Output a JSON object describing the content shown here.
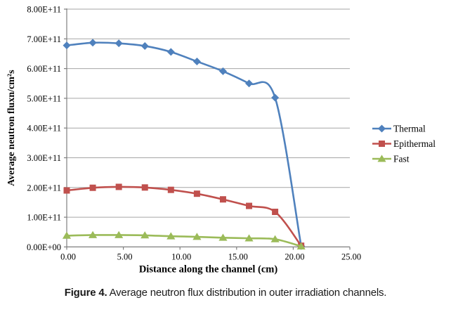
{
  "figure": {
    "caption_label": "Figure 4.",
    "caption_text": " Average neutron flux distribution in outer irradiation channels."
  },
  "chart_data": {
    "type": "line",
    "title": "",
    "xlabel": "Distance along the channel (cm)",
    "ylabel": "Average neutron fluxn/cm²s",
    "x": [
      0.0,
      2.3,
      4.6,
      6.9,
      9.2,
      11.5,
      13.8,
      16.1,
      18.4,
      20.7
    ],
    "series": [
      {
        "name": "Thermal",
        "color": "#4F81BD",
        "marker": "diamond",
        "values_e11": [
          6.78,
          6.87,
          6.85,
          6.76,
          6.56,
          6.24,
          5.91,
          5.5,
          5.02,
          0.03
        ]
      },
      {
        "name": "Epithermal",
        "color": "#C0504D",
        "marker": "square",
        "values_e11": [
          1.9,
          1.99,
          2.02,
          2.0,
          1.92,
          1.79,
          1.6,
          1.38,
          1.18,
          0.04
        ]
      },
      {
        "name": "Fast",
        "color": "#9BBB59",
        "marker": "triangle",
        "values_e11": [
          0.38,
          0.4,
          0.4,
          0.39,
          0.36,
          0.34,
          0.31,
          0.29,
          0.26,
          0.02
        ]
      }
    ],
    "xlim": [
      0,
      25
    ],
    "ylim_e11": [
      0,
      8
    ],
    "x_ticks": [
      "0.00",
      "5.00",
      "10.00",
      "15.00",
      "20.00",
      "25.00"
    ],
    "x_tick_values": [
      0,
      5,
      10,
      15,
      20,
      25
    ],
    "y_ticks": [
      "0.00E+00",
      "1.00E+11",
      "2.00E+11",
      "3.00E+11",
      "4.00E+11",
      "5.00E+11",
      "6.00E+11",
      "7.00E+11",
      "8.00E+11"
    ],
    "y_tick_values_e11": [
      0,
      1,
      2,
      3,
      4,
      5,
      6,
      7,
      8
    ],
    "grid": "horizontal",
    "legend_position": "right",
    "legend_labels": [
      "Thermal",
      "Epithermal",
      "Fast"
    ],
    "colors": {
      "gridline": "#A6A6A6",
      "axis": "#7F7F7F",
      "text": "#000000"
    }
  }
}
